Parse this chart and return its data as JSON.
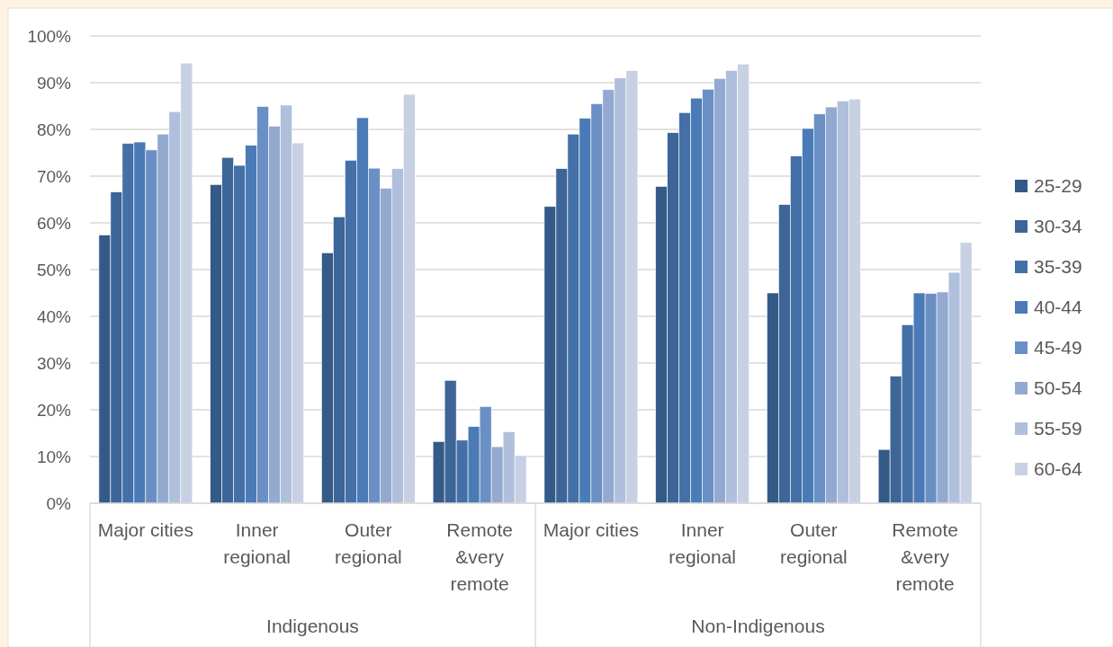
{
  "chart_data": {
    "type": "bar",
    "categories": [
      "Major cities",
      "Inner regional",
      "Outer regional",
      "Remote &very remote",
      "Major cities",
      "Inner regional",
      "Outer regional",
      "Remote &very remote"
    ],
    "annotations": [
      "Indigenous",
      "Non-Indigenous"
    ],
    "series": [
      {
        "name": "25-29",
        "color": "#345a87",
        "values": [
          57.4,
          68.2,
          53.6,
          13.2,
          63.5,
          67.8,
          45.0,
          11.5
        ]
      },
      {
        "name": "30-34",
        "color": "#3d6597",
        "values": [
          66.6,
          74.0,
          61.3,
          26.3,
          71.6,
          79.3,
          63.9,
          27.2
        ]
      },
      {
        "name": "35-39",
        "color": "#4470a7",
        "values": [
          77.0,
          72.3,
          73.4,
          13.5,
          79.0,
          83.6,
          74.3,
          38.2
        ]
      },
      {
        "name": "40-44",
        "color": "#4a7bb7",
        "values": [
          77.3,
          76.6,
          82.5,
          16.4,
          82.4,
          86.7,
          80.2,
          45.0
        ]
      },
      {
        "name": "45-49",
        "color": "#6a8fc5",
        "values": [
          75.6,
          84.9,
          71.7,
          20.7,
          85.5,
          88.6,
          83.3,
          44.9
        ]
      },
      {
        "name": "50-54",
        "color": "#93a9d0",
        "values": [
          79.0,
          80.7,
          67.4,
          12.1,
          88.5,
          90.9,
          84.8,
          45.2
        ]
      },
      {
        "name": "55-59",
        "color": "#afbfdc",
        "values": [
          83.8,
          85.2,
          71.6,
          15.3,
          91.0,
          92.6,
          86.1,
          49.4
        ]
      },
      {
        "name": "60-64",
        "color": "#c8d0e4",
        "values": [
          94.2,
          77.1,
          87.5,
          10.2,
          92.6,
          94.0,
          86.5,
          55.8
        ]
      }
    ],
    "ylim": [
      0,
      100
    ],
    "yticks": [
      {
        "value": 0,
        "label": "0%"
      },
      {
        "value": 10,
        "label": "10%"
      },
      {
        "value": 20,
        "label": "20%"
      },
      {
        "value": 30,
        "label": "30%"
      },
      {
        "value": 40,
        "label": "40%"
      },
      {
        "value": 50,
        "label": "50%"
      },
      {
        "value": 60,
        "label": "60%"
      },
      {
        "value": 70,
        "label": "70%"
      },
      {
        "value": 80,
        "label": "80%"
      },
      {
        "value": 90,
        "label": "90%"
      },
      {
        "value": 100,
        "label": "100%"
      }
    ],
    "grid": "y",
    "legend": "right"
  }
}
